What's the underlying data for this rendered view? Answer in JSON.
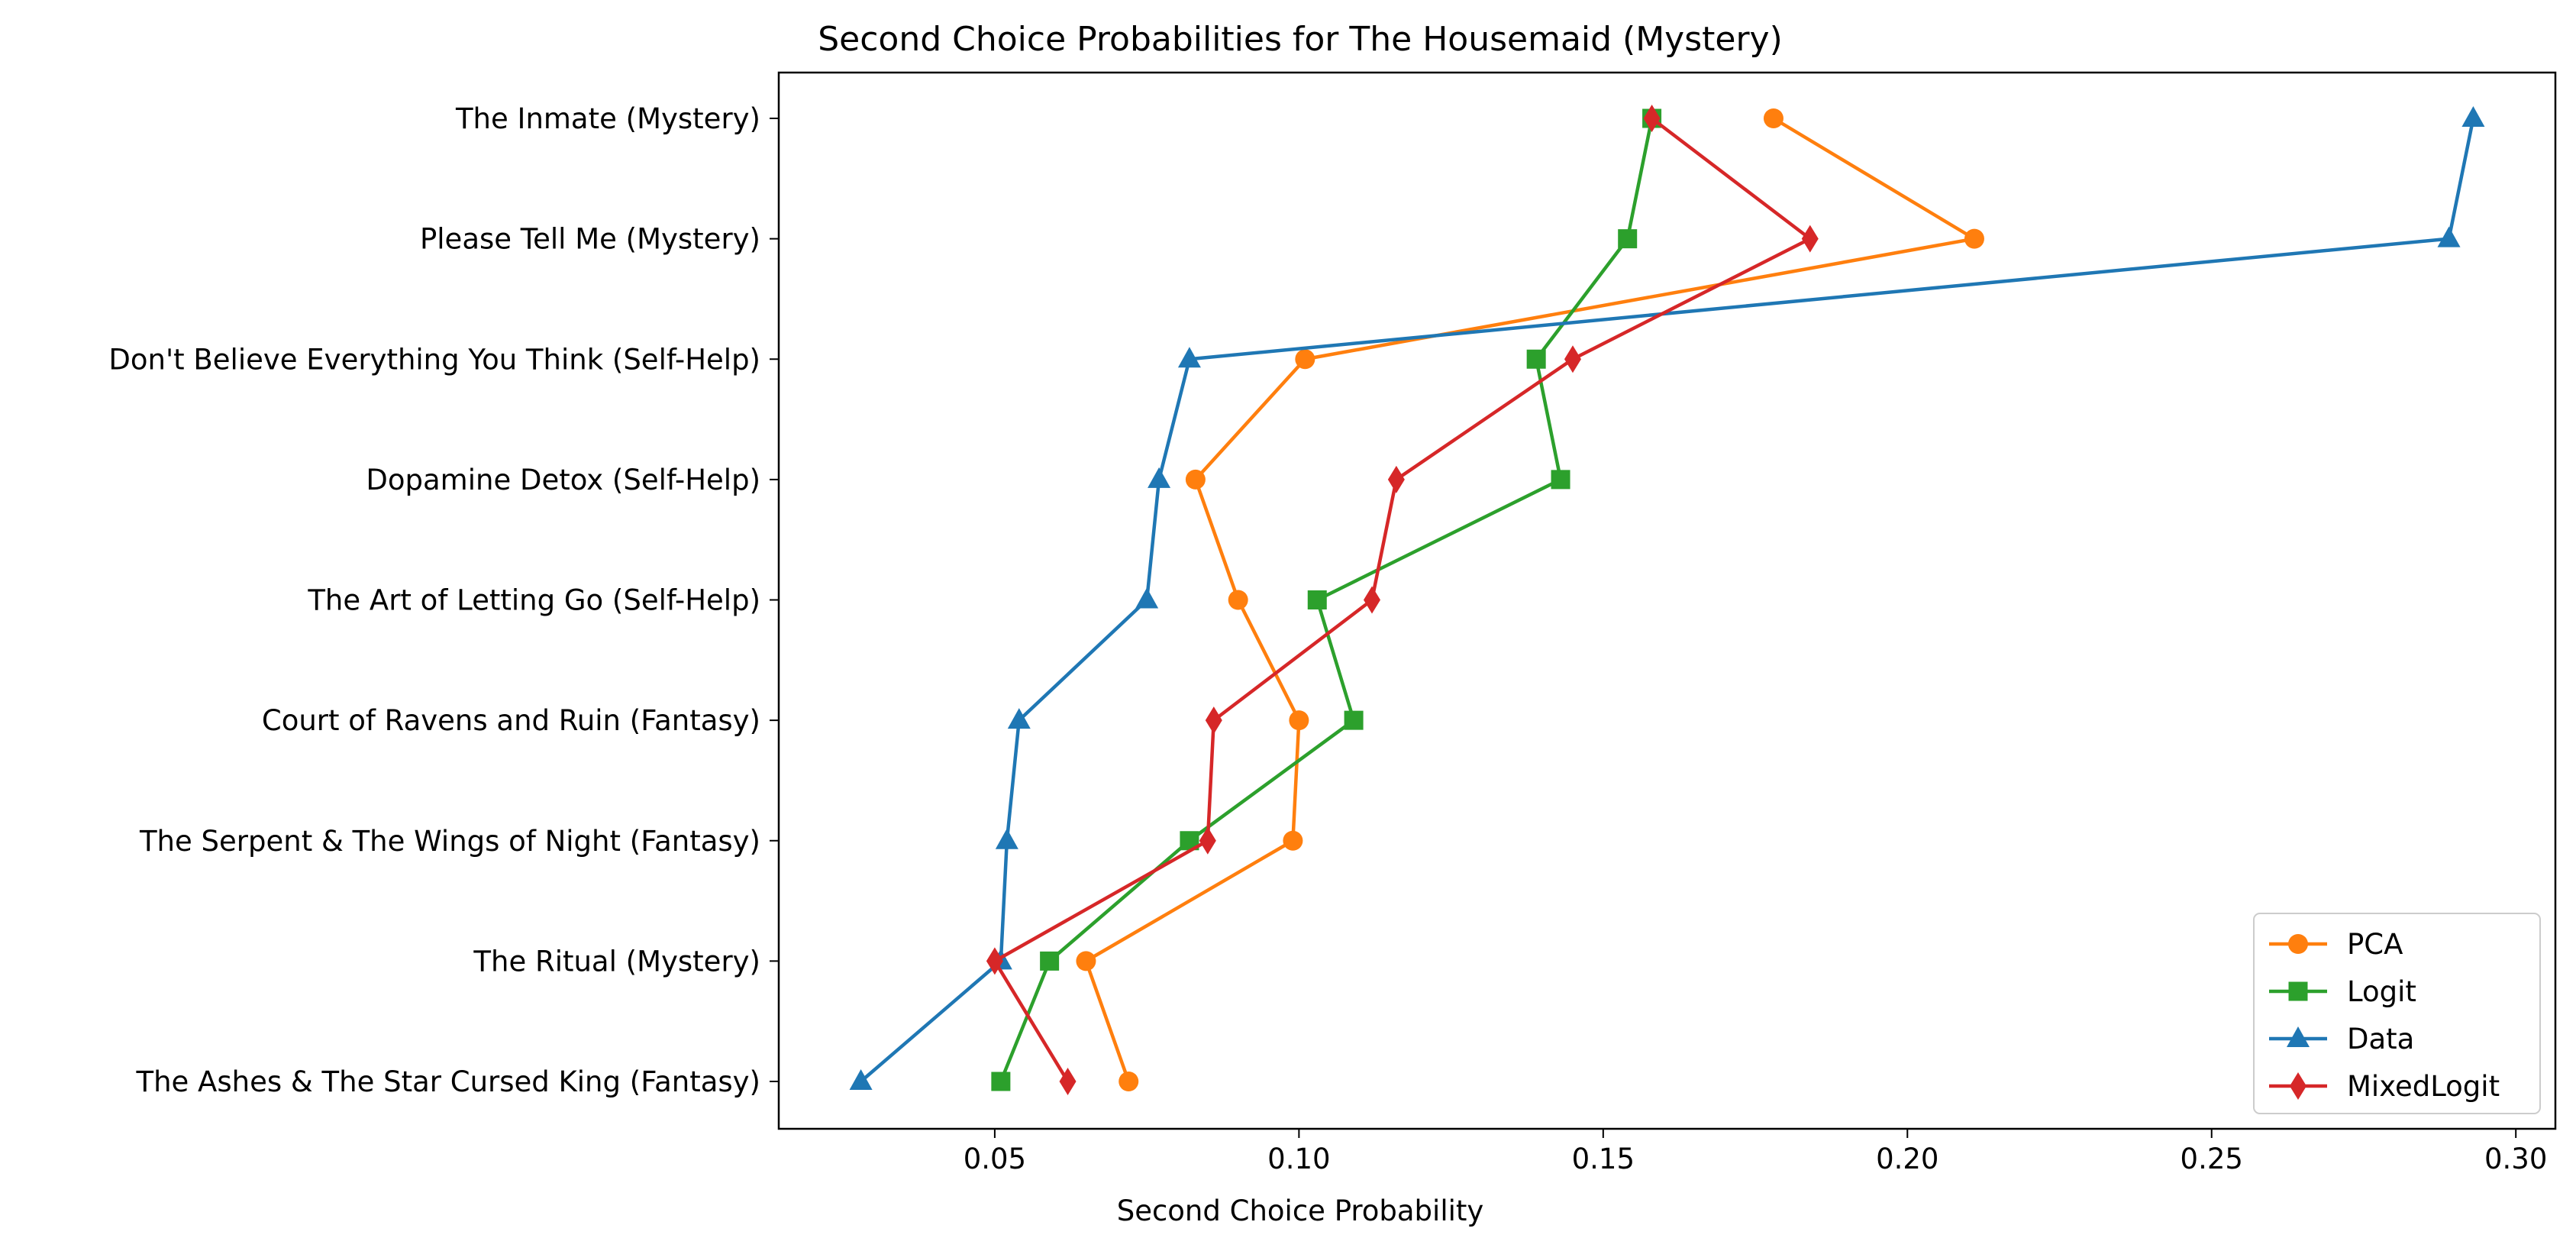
{
  "chart_data": {
    "type": "line",
    "orientation": "horizontal",
    "title": "Second Choice Probabilities for The Housemaid (Mystery)",
    "xlabel": "Second Choice Probability",
    "ylabel": "",
    "xlim": [
      0.0145,
      0.3065
    ],
    "xticks": [
      0.05,
      0.1,
      0.15,
      0.2,
      0.25,
      0.3
    ],
    "xtick_labels": [
      "0.05",
      "0.10",
      "0.15",
      "0.20",
      "0.25",
      "0.30"
    ],
    "grid": false,
    "legend_position": "lower-right",
    "categories": [
      "The Inmate (Mystery)",
      "Please Tell Me (Mystery)",
      "Don't Believe Everything You Think (Self-Help)",
      "Dopamine Detox (Self-Help)",
      "The Art of Letting Go (Self-Help)",
      "Court of Ravens and Ruin (Fantasy)",
      "The Serpent & The Wings of Night (Fantasy)",
      "The Ritual (Mystery)",
      "The Ashes & The Star Cursed King (Fantasy)"
    ],
    "series": [
      {
        "name": "PCA",
        "color": "#ff7f0e",
        "marker": "circle",
        "values": [
          0.178,
          0.211,
          0.101,
          0.083,
          0.09,
          0.1,
          0.099,
          0.065,
          0.072
        ]
      },
      {
        "name": "Logit",
        "color": "#2ca02c",
        "marker": "square",
        "values": [
          0.158,
          0.154,
          0.139,
          0.143,
          0.103,
          0.109,
          0.082,
          0.059,
          0.051
        ]
      },
      {
        "name": "Data",
        "color": "#1f77b4",
        "marker": "triangle",
        "values": [
          0.293,
          0.289,
          0.082,
          0.077,
          0.075,
          0.054,
          0.052,
          0.051,
          0.028
        ]
      },
      {
        "name": "MixedLogit",
        "color": "#d62728",
        "marker": "diamond",
        "values": [
          0.158,
          0.184,
          0.145,
          0.116,
          0.112,
          0.086,
          0.085,
          0.05,
          0.062
        ]
      }
    ]
  }
}
